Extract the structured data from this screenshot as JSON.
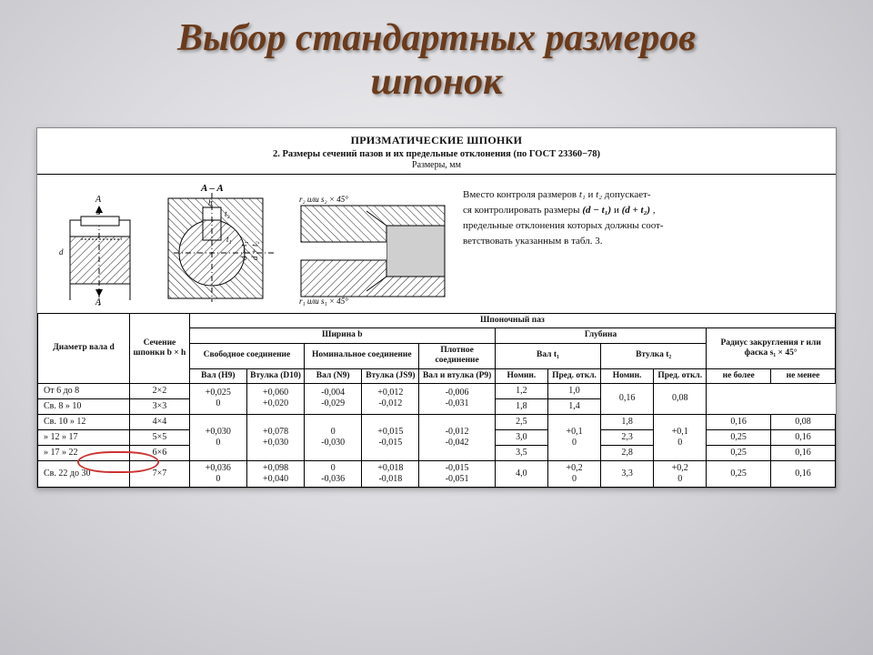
{
  "title_line1": "Выбор стандартных размеров",
  "title_line2": "шпонок",
  "doc": {
    "h1": "ПРИЗМАТИЧЕСКИЕ ШПОНКИ",
    "h2": "2. Размеры сечений пазов и их предельные отклонения (по ГОСТ 23360−78)",
    "h3": "Размеры, мм",
    "section_label": "A – A",
    "chamfer_top": "r₂ или s₂ × 45°",
    "chamfer_bot": "r₁ или s₁ × 45°",
    "dim_b": "b",
    "dim_t2": "t₂",
    "dim_t1": "t₁",
    "dim_d": "d",
    "dim_dt1": "d − t₁",
    "dim_dt2": "d + t₂",
    "arrow_A": "A",
    "side_note_l1": "Вместо контроля размеров ",
    "side_note_t1": "t₁",
    "side_note_and": " и ",
    "side_note_t2": "t₂",
    "side_note_l2": " допускает-",
    "side_note_l3": "ся контролировать размеры ",
    "side_note_p1": "(d − t₁)",
    "side_note_p2": "(d + t₂)",
    "side_note_l4": " ,",
    "side_note_l5": "предельные отклонения которых должны соот-",
    "side_note_l6": "ветствовать указанным в табл. 3."
  },
  "headers": {
    "shaft_d": "Диаметр вала d",
    "section": "Сечение шпонки b × h",
    "keyway": "Шпоночный паз",
    "width_b": "Ширина b",
    "depth": "Глубина",
    "radius": "Радиус закругления r или фаска s₁ × 45°",
    "free": "Свободное соединение",
    "nominal": "Номинальное соединение",
    "tight": "Плотное соединение",
    "shaft_t1": "Вал t₁",
    "hub_t2": "Втулка t₂",
    "val_h9": "Вал (H9)",
    "hub_d10": "Втулка (D10)",
    "val_n9": "Вал (N9)",
    "hub_js9": "Втулка (JS9)",
    "both_p9": "Вал и втулка (P9)",
    "nomin": "Номин.",
    "pred": "Пред. откл.",
    "ne_bolee": "не более",
    "ne_menee": "не менее"
  },
  "rows": [
    {
      "d": "От  6 до  8",
      "bh": "2×2",
      "h9": "+0,025\n0",
      "d10": "+0,060\n+0,020",
      "n9": "-0,004\n-0,029",
      "js9": "+0,012\n-0,012",
      "p9": "-0,006\n-0,031",
      "t1n": "1,2",
      "t1p": "",
      "t2n": "1,0",
      "t2p": "",
      "rmax": "0,16",
      "rmin": "0,08",
      "merge_h9": true,
      "merge_t1p": " ",
      "merge_t2p": " ",
      "merge_r": true
    },
    {
      "d": "Св.  8  »  10",
      "bh": "3×3",
      "h9": "",
      "d10": "",
      "n9": "",
      "js9": "",
      "p9": "",
      "t1n": "1,8",
      "t1p": "",
      "t2n": "1,4",
      "t2p": "",
      "rmax": "",
      "rmin": ""
    },
    {
      "d": "Св. 10  »  12",
      "bh": "4×4",
      "h9": "+0,030\n0",
      "d10": "+0,078\n+0,030",
      "n9": "0\n-0,030",
      "js9": "+0,015\n-0,015",
      "p9": "-0,012\n-0,042",
      "t1n": "2,5",
      "t1p": "+0,1\n0",
      "t2n": "1,8",
      "t2p": "+0,1\n0",
      "rmax": "0,16",
      "rmin": "0,08"
    },
    {
      "d": "»   12  »  17",
      "bh": "5×5",
      "h9": "",
      "d10": "",
      "n9": "",
      "js9": "",
      "p9": "",
      "t1n": "3,0",
      "t1p": "",
      "t2n": "2,3",
      "t2p": "",
      "rmax": "0,25",
      "rmin": "0,16"
    },
    {
      "d": "»   17  »  22",
      "bh": "6×6",
      "h9": "",
      "d10": "",
      "n9": "",
      "js9": "",
      "p9": "",
      "t1n": "3,5",
      "t1p": "",
      "t2n": "2,8",
      "t2p": "",
      "rmax": "0,25",
      "rmin": "0,16"
    },
    {
      "d": "Св. 22 до 30",
      "bh": "7×7",
      "h9": "+0,036\n0",
      "d10": "+0,098\n+0,040",
      "n9": "0\n-0,036",
      "js9": "+0,018\n-0,018",
      "p9": "-0,015\n-0,051",
      "t1n": "4,0",
      "t1p": "+0,2\n0",
      "t2n": "3,3",
      "t2p": "+0,2\n0",
      "rmax": "0,25",
      "rmin": "0,16"
    }
  ],
  "style": {
    "title_color": "#6b3a1a",
    "line_color": "#000000",
    "hatch_color": "#222222",
    "circle_color": "#c33",
    "bg_white": "#ffffff"
  }
}
